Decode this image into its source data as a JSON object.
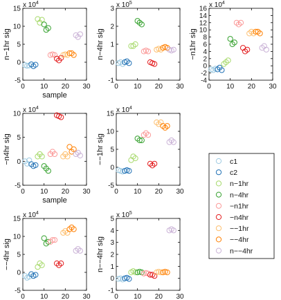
{
  "legend": {
    "placement": "right",
    "entries": [
      {
        "name": "c1",
        "color": "#9ecae1"
      },
      {
        "name": "c2",
        "color": "#2171b5"
      },
      {
        "name": "n−1hr",
        "color": "#a6d96a"
      },
      {
        "name": "n−4hr",
        "color": "#33a02c"
      },
      {
        "name": "−n1hr",
        "color": "#fb9a99"
      },
      {
        "name": "−n4hr",
        "color": "#e31a1c"
      },
      {
        "name": "−−1hr",
        "color": "#fdbf6f"
      },
      {
        "name": "−−4hr",
        "color": "#ff7f00"
      },
      {
        "name": "n−−4hr",
        "color": "#cab2d6"
      }
    ]
  },
  "chart_data": [
    {
      "type": "scatter",
      "xlabel": "sample",
      "ylabel": "n−1hr sig",
      "scale_label": "x 10",
      "exponent": "4",
      "xlim": [
        0,
        30
      ],
      "ylim": [
        -5,
        15
      ],
      "xticks": [
        "0",
        "10",
        "20",
        "30"
      ],
      "yticks": [
        "-5",
        "0",
        "5",
        "10",
        "15"
      ],
      "series": [
        {
          "x": [
            1,
            2,
            3
          ],
          "y": [
            -0.8,
            -1,
            -0.9
          ]
        },
        {
          "x": [
            4,
            5,
            6
          ],
          "y": [
            -0.6,
            -1.1,
            -0.7
          ]
        },
        {
          "x": [
            7,
            8,
            9
          ],
          "y": [
            12,
            11,
            11.8
          ]
        },
        {
          "x": [
            10,
            11,
            12
          ],
          "y": [
            10.5,
            9,
            9.5
          ]
        },
        {
          "x": [
            13,
            14,
            15
          ],
          "y": [
            2,
            2.2,
            2
          ]
        },
        {
          "x": [
            16,
            17,
            18
          ],
          "y": [
            1,
            0.5,
            1.2
          ]
        },
        {
          "x": [
            19,
            20,
            21
          ],
          "y": [
            2,
            2.2,
            2
          ]
        },
        {
          "x": [
            22,
            23,
            24
          ],
          "y": [
            2.5,
            2.5,
            2
          ]
        },
        {
          "x": [
            25,
            26,
            27
          ],
          "y": [
            7.5,
            7,
            7.8
          ]
        }
      ]
    },
    {
      "type": "scatter",
      "xlabel": "",
      "ylabel": "n−4hr sig",
      "scale_label": "x 10",
      "exponent": "5",
      "xlim": [
        0,
        30
      ],
      "ylim": [
        -1,
        3
      ],
      "xticks": [
        "0",
        "10",
        "20",
        "30"
      ],
      "yticks": [
        "-1",
        "0",
        "1",
        "2",
        "3"
      ],
      "series": [
        {
          "x": [
            1,
            2,
            3
          ],
          "y": [
            -0.05,
            0,
            -0.1
          ]
        },
        {
          "x": [
            4,
            5,
            6
          ],
          "y": [
            0,
            0.05,
            -0.05
          ]
        },
        {
          "x": [
            7,
            8,
            9
          ],
          "y": [
            0.9,
            0.9,
            1
          ]
        },
        {
          "x": [
            10,
            11,
            12
          ],
          "y": [
            2.3,
            2.2,
            2.1
          ]
        },
        {
          "x": [
            13,
            14,
            15
          ],
          "y": [
            0.6,
            0.65,
            0.6
          ]
        },
        {
          "x": [
            16,
            17,
            18
          ],
          "y": [
            0,
            -0.05,
            -0.1
          ]
        },
        {
          "x": [
            19,
            20,
            21
          ],
          "y": [
            0.7,
            0.75,
            0.7
          ]
        },
        {
          "x": [
            22,
            23,
            24
          ],
          "y": [
            0.8,
            0.85,
            0.8
          ]
        },
        {
          "x": [
            25,
            26,
            27
          ],
          "y": [
            0.7,
            0.65,
            0.7
          ]
        }
      ]
    },
    {
      "type": "scatter",
      "xlabel": "",
      "ylabel": "−n1hr sig",
      "scale_label": "x 10",
      "exponent": "4",
      "xlim": [
        0,
        30
      ],
      "ylim": [
        -4,
        16
      ],
      "xticks": [
        "0",
        "10",
        "20",
        "30"
      ],
      "yticks": [
        "-4",
        "-2",
        "0",
        "2",
        "4",
        "6",
        "8",
        "10",
        "12",
        "14",
        "16"
      ],
      "series": [
        {
          "x": [
            1,
            2,
            3
          ],
          "y": [
            -1,
            -1.2,
            -0.8
          ]
        },
        {
          "x": [
            4,
            5,
            6
          ],
          "y": [
            -1,
            -0.5,
            -1.2
          ]
        },
        {
          "x": [
            7,
            8,
            9
          ],
          "y": [
            0.5,
            1,
            1.5
          ]
        },
        {
          "x": [
            10,
            11,
            12
          ],
          "y": [
            7.5,
            6,
            6.5
          ]
        },
        {
          "x": [
            13,
            14,
            15
          ],
          "y": [
            12,
            11.5,
            12
          ]
        },
        {
          "x": [
            16,
            17,
            18
          ],
          "y": [
            5,
            4,
            4.5
          ]
        },
        {
          "x": [
            19,
            20,
            21
          ],
          "y": [
            9,
            9.5,
            9
          ]
        },
        {
          "x": [
            22,
            23,
            24
          ],
          "y": [
            9.5,
            9.5,
            9
          ]
        },
        {
          "x": [
            25,
            26,
            27
          ],
          "y": [
            5,
            5.5,
            4.5
          ]
        }
      ]
    },
    {
      "type": "scatter",
      "xlabel": "sample",
      "ylabel": "−n4hr sig",
      "scale_label": "x 10",
      "exponent": "4",
      "xlim": [
        0,
        30
      ],
      "ylim": [
        -5,
        10
      ],
      "xticks": [
        "0",
        "10",
        "20",
        "30"
      ],
      "yticks": [
        "-5",
        "0",
        "5",
        "10"
      ],
      "series": [
        {
          "x": [
            1,
            2,
            3
          ],
          "y": [
            0,
            -0.5,
            0.2
          ]
        },
        {
          "x": [
            4,
            5,
            6
          ],
          "y": [
            -0.6,
            -1,
            -0.8
          ]
        },
        {
          "x": [
            7,
            8,
            9
          ],
          "y": [
            1,
            1.5,
            1
          ]
        },
        {
          "x": [
            10,
            11,
            12
          ],
          "y": [
            -1,
            -1.5,
            -2
          ]
        },
        {
          "x": [
            13,
            14,
            15
          ],
          "y": [
            1.5,
            2,
            1.5
          ]
        },
        {
          "x": [
            16,
            17,
            18
          ],
          "y": [
            9.6,
            9.4,
            9.2
          ]
        },
        {
          "x": [
            19,
            20,
            21
          ],
          "y": [
            1,
            1.5,
            1
          ]
        },
        {
          "x": [
            22,
            23,
            24
          ],
          "y": [
            3,
            2,
            2.5
          ]
        },
        {
          "x": [
            25,
            26,
            27
          ],
          "y": [
            1.5,
            1.8,
            1.2
          ]
        }
      ]
    },
    {
      "type": "scatter",
      "xlabel": "",
      "ylabel": "−−1hr sig",
      "scale_label": "x 10",
      "exponent": "4",
      "xlim": [
        0,
        30
      ],
      "ylim": [
        -5,
        15
      ],
      "xticks": [
        "0",
        "10",
        "20",
        "30"
      ],
      "yticks": [
        "-5",
        "0",
        "5",
        "10",
        "15"
      ],
      "series": [
        {
          "x": [
            1,
            2,
            3
          ],
          "y": [
            -0.8,
            -1,
            -1.2
          ]
        },
        {
          "x": [
            4,
            5,
            6
          ],
          "y": [
            -1,
            -0.8,
            -1
          ]
        },
        {
          "x": [
            7,
            8,
            9
          ],
          "y": [
            2,
            3,
            2.5
          ]
        },
        {
          "x": [
            10,
            11,
            12
          ],
          "y": [
            8,
            7.5,
            7.5
          ]
        },
        {
          "x": [
            13,
            14,
            15
          ],
          "y": [
            9,
            9.5,
            9
          ]
        },
        {
          "x": [
            16,
            17,
            18
          ],
          "y": [
            1,
            0.5,
            1
          ]
        },
        {
          "x": [
            19,
            20,
            21
          ],
          "y": [
            12.5,
            12,
            12.5
          ]
        },
        {
          "x": [
            22,
            23,
            24
          ],
          "y": [
            11.5,
            11,
            11.5
          ]
        },
        {
          "x": [
            25,
            26,
            27
          ],
          "y": [
            7,
            7.5,
            7
          ]
        }
      ]
    },
    {
      "type": "scatter",
      "xlabel": "sample",
      "ylabel": "−−4hr sig",
      "scale_label": "x 10",
      "exponent": "4",
      "xlim": [
        0,
        30
      ],
      "ylim": [
        -5,
        15
      ],
      "xticks": [
        "0",
        "10",
        "20",
        "30"
      ],
      "yticks": [
        "-5",
        "0",
        "5",
        "10",
        "15"
      ],
      "series": [
        {
          "x": [
            1,
            2,
            3
          ],
          "y": [
            -1,
            -1.5,
            -1.2
          ]
        },
        {
          "x": [
            4,
            5,
            6
          ],
          "y": [
            -0.5,
            -1,
            -0.7
          ]
        },
        {
          "x": [
            7,
            8,
            9
          ],
          "y": [
            1.5,
            2.5,
            2
          ]
        },
        {
          "x": [
            10,
            11,
            12
          ],
          "y": [
            9.5,
            8,
            8.5
          ]
        },
        {
          "x": [
            13,
            14,
            15
          ],
          "y": [
            8.5,
            9,
            9
          ]
        },
        {
          "x": [
            16,
            17,
            18
          ],
          "y": [
            2.5,
            2,
            2.5
          ]
        },
        {
          "x": [
            19,
            20,
            21
          ],
          "y": [
            11,
            11.5,
            11
          ]
        },
        {
          "x": [
            22,
            23,
            24
          ],
          "y": [
            12,
            12.5,
            12
          ]
        },
        {
          "x": [
            25,
            26,
            27
          ],
          "y": [
            6,
            6.5,
            6
          ]
        }
      ]
    },
    {
      "type": "scatter",
      "xlabel": "sample",
      "ylabel": "n−−4hr sig",
      "scale_label": "x 10",
      "exponent": "5",
      "xlim": [
        0,
        30
      ],
      "ylim": [
        -1,
        5
      ],
      "xticks": [
        "0",
        "10",
        "20",
        "30"
      ],
      "yticks": [
        "-1",
        "0",
        "1",
        "2",
        "3",
        "4",
        "5"
      ],
      "series": [
        {
          "x": [
            1,
            2,
            3
          ],
          "y": [
            -0.05,
            0,
            -0.1
          ]
        },
        {
          "x": [
            4,
            5,
            6
          ],
          "y": [
            0,
            0.05,
            -0.05
          ]
        },
        {
          "x": [
            7,
            8,
            9
          ],
          "y": [
            0.5,
            0.6,
            0.5
          ]
        },
        {
          "x": [
            10,
            11,
            12
          ],
          "y": [
            0.5,
            0.55,
            0.5
          ]
        },
        {
          "x": [
            13,
            14,
            15
          ],
          "y": [
            0.4,
            0.45,
            0.4
          ]
        },
        {
          "x": [
            16,
            17,
            18
          ],
          "y": [
            0.3,
            0.3,
            0.2
          ]
        },
        {
          "x": [
            19,
            20,
            21
          ],
          "y": [
            0.5,
            0.55,
            0.5
          ]
        },
        {
          "x": [
            22,
            23,
            24
          ],
          "y": [
            0.5,
            0.55,
            0.5
          ]
        },
        {
          "x": [
            25,
            26,
            27
          ],
          "y": [
            4,
            4.1,
            4
          ]
        }
      ]
    }
  ]
}
